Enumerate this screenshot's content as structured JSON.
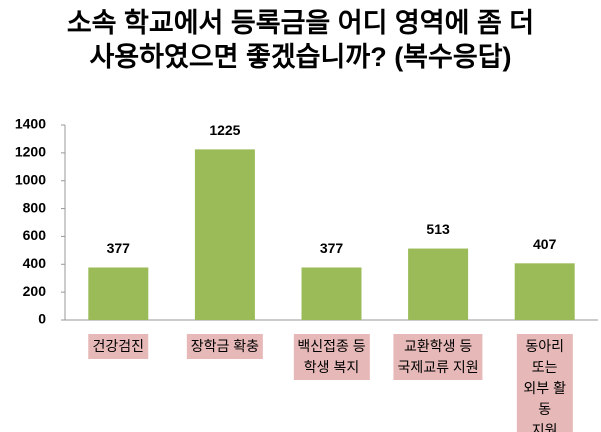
{
  "chart_data": {
    "type": "bar",
    "title": "소속 학교에서 등록금을 어디 영역에 좀 더\n사용하였으면 좋겠습니까? (복수응답)",
    "categories": [
      "건강검진",
      "장학금 확충",
      "백신접종 등\n학생 복지",
      "교환학생 등\n국제교류 지원",
      "동아리 또는\n외부 활동\n지원"
    ],
    "values": [
      377,
      1225,
      377,
      513,
      407
    ],
    "color": "#9bbb59",
    "label_color": "#e6b9b8",
    "ylim": [
      0,
      1400
    ],
    "yticks": [
      0,
      200,
      400,
      600,
      800,
      1000,
      1200,
      1400
    ],
    "grid": false
  }
}
